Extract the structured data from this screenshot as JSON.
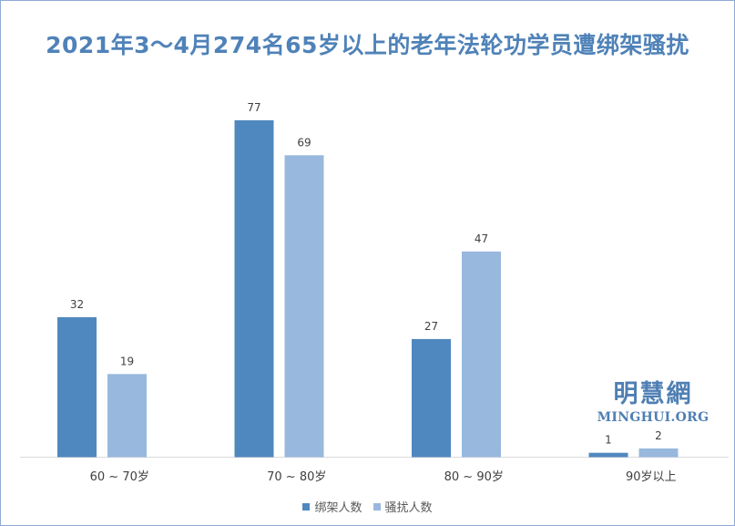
{
  "colors": {
    "series1": "#4f88be",
    "series2": "#98b8de",
    "axis": "#d9d9d9",
    "label": "#404040"
  },
  "watermark": {
    "cn": "明慧網",
    "en": "MINGHUI.ORG"
  },
  "chart_data": {
    "type": "bar",
    "title": "2021年3～4月274名65岁以上的老年法轮功学员遭绑架骚扰",
    "categories": [
      "60 ~ 70岁",
      "70 ~ 80岁",
      "80 ~ 90岁",
      "90岁以上"
    ],
    "series": [
      {
        "name": "绑架人数",
        "values": [
          32,
          77,
          27,
          1
        ]
      },
      {
        "name": "骚扰人数",
        "values": [
          19,
          69,
          47,
          2
        ]
      }
    ],
    "ylim": [
      0,
      80
    ],
    "grid": false,
    "legend": "bottom",
    "xlabel": "",
    "ylabel": ""
  }
}
